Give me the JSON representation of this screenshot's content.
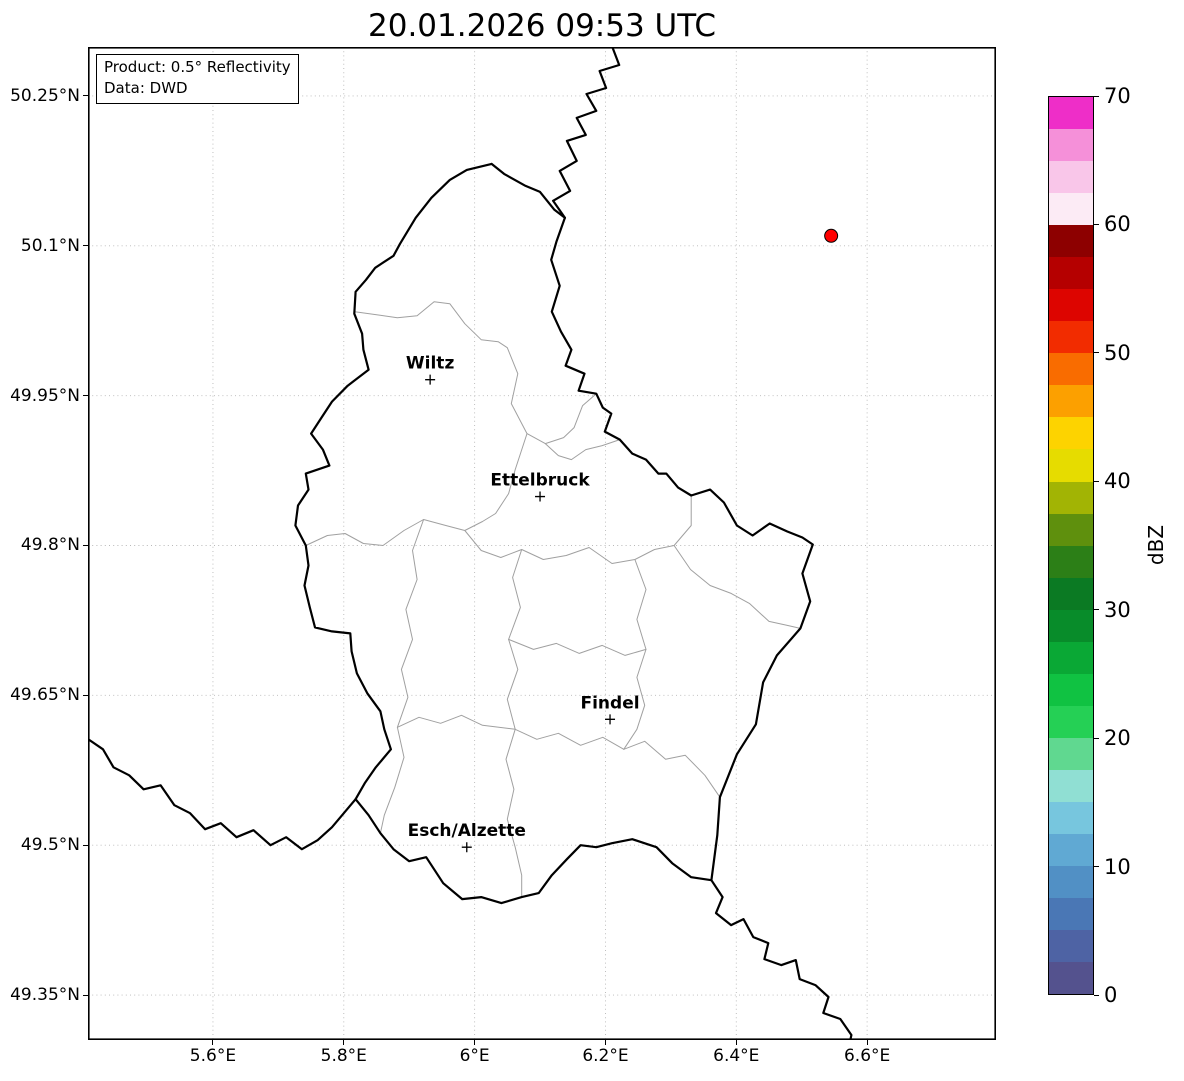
{
  "title": "20.01.2026 09:53 UTC",
  "info_box": {
    "line1": "Product: 0.5° Reflectivity",
    "line2": "Data: DWD"
  },
  "axes": {
    "lat_ticks": [
      {
        "value": 50.25,
        "label": "50.25°N"
      },
      {
        "value": 50.1,
        "label": "50.1°N"
      },
      {
        "value": 49.95,
        "label": "49.95°N"
      },
      {
        "value": 49.8,
        "label": "49.8°N"
      },
      {
        "value": 49.65,
        "label": "49.65°N"
      },
      {
        "value": 49.5,
        "label": "49.5°N"
      },
      {
        "value": 49.35,
        "label": "49.35°N"
      }
    ],
    "lon_ticks": [
      {
        "value": 5.6,
        "label": "5.6°E"
      },
      {
        "value": 5.8,
        "label": "5.8°E"
      },
      {
        "value": 6.0,
        "label": "6°E"
      },
      {
        "value": 6.2,
        "label": "6.2°E"
      },
      {
        "value": 6.4,
        "label": "6.4°E"
      },
      {
        "value": 6.6,
        "label": "6.6°E"
      }
    ]
  },
  "map_extent": {
    "lon_min": 5.409,
    "lon_max": 6.797,
    "lat_min": 49.305,
    "lat_max": 50.299
  },
  "cities": [
    {
      "name": "Wiltz",
      "lon": 5.932,
      "lat": 49.966
    },
    {
      "name": "Ettelbruck",
      "lon": 6.1,
      "lat": 49.849
    },
    {
      "name": "Findel",
      "lon": 6.207,
      "lat": 49.626
    },
    {
      "name": "Esch/Alzette",
      "lon": 5.988,
      "lat": 49.498
    }
  ],
  "echo_marker": {
    "lon": 6.545,
    "lat": 50.11,
    "color": "#ff0000",
    "edge_color": "#000000"
  },
  "colorbar": {
    "label": "dBZ",
    "vmin": 0,
    "vmax": 70,
    "ticks": [
      0,
      10,
      20,
      30,
      40,
      50,
      60,
      70
    ],
    "colors_bottom_to_top": [
      "#54528e",
      "#4e63a4",
      "#4a77b5",
      "#5190c5",
      "#60a9d3",
      "#77c6de",
      "#90dfd3",
      "#60d890",
      "#25d055",
      "#10c242",
      "#0aa835",
      "#088c2a",
      "#0b7a23",
      "#2c7f17",
      "#5f900d",
      "#a2b404",
      "#e6dc00",
      "#fdd300",
      "#fca000",
      "#f96c00",
      "#f22c00",
      "#dd0500",
      "#b50000",
      "#8d0000",
      "#fcebf5",
      "#f9c6e9",
      "#f590d9",
      "#ee2ec8"
    ]
  },
  "style_colors": {
    "country_border": "#000000",
    "canton_border": "#a0a0a0",
    "grid": "#b8b8b8",
    "city_label": "#000000"
  }
}
